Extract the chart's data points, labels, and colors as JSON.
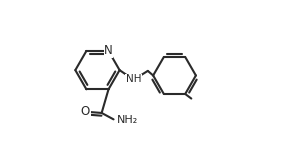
{
  "background_color": "#ffffff",
  "line_color": "#2a2a2a",
  "line_width": 1.5,
  "figsize": [
    2.88,
    1.54
  ],
  "dpi": 100,
  "xlim": [
    0.0,
    1.0
  ],
  "ylim": [
    0.0,
    1.0
  ]
}
